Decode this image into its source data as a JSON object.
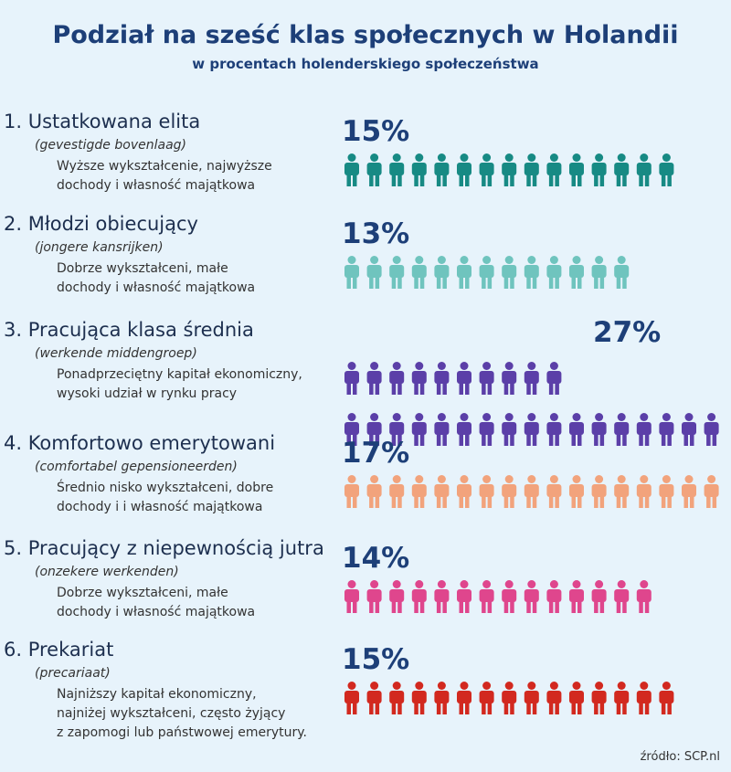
{
  "chart_data": {
    "type": "pictogram",
    "title": "Podział na sześć klas społecznych w Holandii",
    "subtitle": "w procentach holenderskiego społeczeństwa",
    "categories": [
      "1. Ustatkowana elita",
      "2. Młodzi obiecujący",
      "3. Pracująca klasa średnia",
      "4. Komfortowo emerytowani",
      "5. Pracujący z niepewnością jutra",
      "6. Prekariat"
    ],
    "dutch_names": [
      "(gevestigde bovenlaag)",
      "(jongere kansrijken)",
      "(werkende middengroep)",
      "(comfortabel gepensioneerden)",
      "(onzekere werkenden)",
      "(precariaat)"
    ],
    "descriptions": [
      [
        "Wyższe wykształcenie, najwyższe",
        "dochody i własność majątkowa"
      ],
      [
        "Dobrze wykształceni, małe",
        "dochody i własność majątkowa"
      ],
      [
        "Ponadprzeciętny kapitał ekonomiczny,",
        "wysoki udział w rynku pracy"
      ],
      [
        "Średnio nisko wykształceni, dobre",
        "dochody i i własność majątkowa"
      ],
      [
        "Dobrze wykształceni, małe",
        "dochody i własność majątkowa"
      ],
      [
        "Najniższy kapitał ekonomiczny,",
        "najniżej wykształceni, często żyjący",
        "z zapomogi lub państwowej emerytury."
      ]
    ],
    "values": [
      15,
      13,
      27,
      17,
      14,
      15
    ],
    "value_labels": [
      "15%",
      "13%",
      "27%",
      "17%",
      "14%",
      "15%"
    ],
    "colors": [
      "#178a84",
      "#6fc4be",
      "#5b3fa8",
      "#f2a37c",
      "#df468d",
      "#d2291f"
    ],
    "source": "źródło: SCP.nl"
  }
}
